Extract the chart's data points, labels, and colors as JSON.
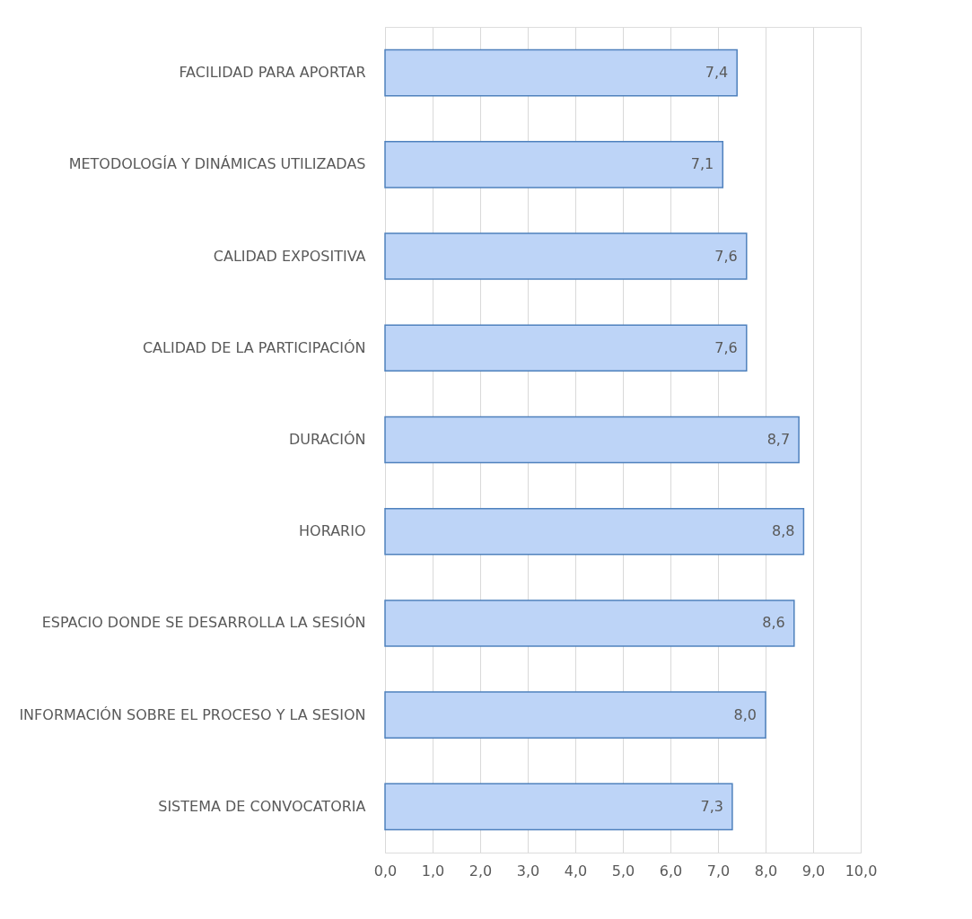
{
  "chart_data": {
    "type": "bar",
    "orientation": "horizontal",
    "categories": [
      "FACILIDAD PARA APORTAR",
      "METODOLOGÍA Y DINÁMICAS UTILIZADAS",
      "CALIDAD EXPOSITIVA",
      "CALIDAD DE LA PARTICIPACIÓN",
      "DURACIÓN",
      "HORARIO",
      "ESPACIO DONDE SE DESARROLLA LA SESIÓN",
      "INFORMACIÓN SOBRE EL PROCESO Y LA SESION",
      "SISTEMA DE CONVOCATORIA"
    ],
    "values": [
      7.4,
      7.1,
      7.6,
      7.6,
      8.7,
      8.8,
      8.6,
      8.0,
      7.3
    ],
    "value_labels": [
      "7,4",
      "7,1",
      "7,6",
      "7,6",
      "8,7",
      "8,8",
      "8,6",
      "8,0",
      "7,3"
    ],
    "color": "#bdd4f7",
    "xlim": [
      0,
      10
    ],
    "xticks": [
      {
        "value": 0,
        "label": "0,0"
      },
      {
        "value": 1,
        "label": "1,0"
      },
      {
        "value": 2,
        "label": "2,0"
      },
      {
        "value": 3,
        "label": "3,0"
      },
      {
        "value": 4,
        "label": "4,0"
      },
      {
        "value": 5,
        "label": "5,0"
      },
      {
        "value": 6,
        "label": "6,0"
      },
      {
        "value": 7,
        "label": "7,0"
      },
      {
        "value": 8,
        "label": "8,0"
      },
      {
        "value": 9,
        "label": "9,0"
      },
      {
        "value": 10,
        "label": "10,0"
      }
    ],
    "grid": "x"
  }
}
